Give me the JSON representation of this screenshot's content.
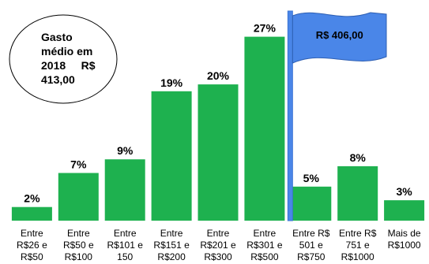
{
  "chart_data": {
    "type": "bar",
    "categories": [
      [
        "Entre",
        "R$26 e",
        "R$50"
      ],
      [
        "Entre",
        "R$50 e",
        "R$100"
      ],
      [
        "Entre",
        "R$101 e",
        "150"
      ],
      [
        "Entre",
        "R$151 e",
        "R$200"
      ],
      [
        "Entre",
        "R$201 e",
        "R$300"
      ],
      [
        "Entre",
        "R$301 e",
        "R$500"
      ],
      [
        "Entre R$",
        "501 e",
        "R$750"
      ],
      [
        "Entre R$",
        "751 e",
        "R$1000"
      ],
      [
        "Mais de",
        "R$1000"
      ]
    ],
    "values": [
      2,
      7,
      9,
      19,
      20,
      27,
      5,
      8,
      3
    ],
    "value_labels": [
      "2%",
      "7%",
      "9%",
      "19%",
      "20%",
      "27%",
      "5%",
      "8%",
      "3%"
    ],
    "ylim": [
      0,
      28
    ],
    "grid": false,
    "legend": "none",
    "bar_color": "#1eb14f",
    "annotations": {
      "ellipse_lines": [
        "Gasto",
        "médio em",
        "2018     R$",
        "413,00"
      ],
      "flag_text": "R$ 406,00",
      "flag_color": "#4a86e8",
      "flag_after_category": 5
    }
  }
}
